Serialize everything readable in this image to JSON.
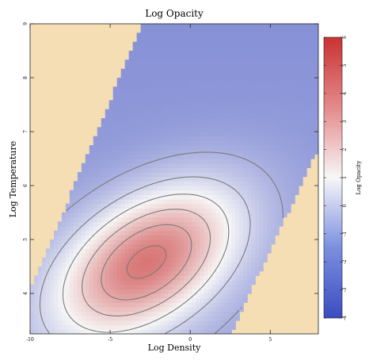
{
  "chart_data": {
    "type": "heatmap",
    "title": "Log Opacity",
    "xlabel": "Log Density",
    "ylabel": "Log Temperature",
    "xlim": [
      -10,
      8
    ],
    "ylim": [
      3.25,
      9
    ],
    "x_ticks": [
      -10,
      -5,
      0,
      5
    ],
    "y_ticks": [
      4,
      5,
      6,
      7,
      8,
      9
    ],
    "colorbar": {
      "label": "Log Opacity",
      "range": [
        -4,
        6
      ],
      "ticks": [
        -4,
        -3,
        -2,
        -1,
        0,
        1,
        2,
        3,
        4,
        5,
        6
      ]
    },
    "contour_levels": [
      -3,
      -2,
      -1,
      0,
      1,
      2,
      3,
      4,
      5
    ],
    "peak": {
      "log_density": -2.7,
      "log_temperature": 4.6,
      "log_opacity": 5.8
    },
    "valid_band": {
      "lower_edge": [
        [
          -10,
          3.25
        ],
        [
          2.5,
          3.25
        ],
        [
          8,
          6.7
        ]
      ],
      "upper_edge": [
        [
          -10,
          4.05
        ],
        [
          -3,
          9
        ]
      ]
    },
    "colors": {
      "background": "#f5deb3",
      "low": "#3b4cc0",
      "mid": "#f7f7f7",
      "high": "#c93232",
      "contour": "#7a7a7a"
    }
  }
}
